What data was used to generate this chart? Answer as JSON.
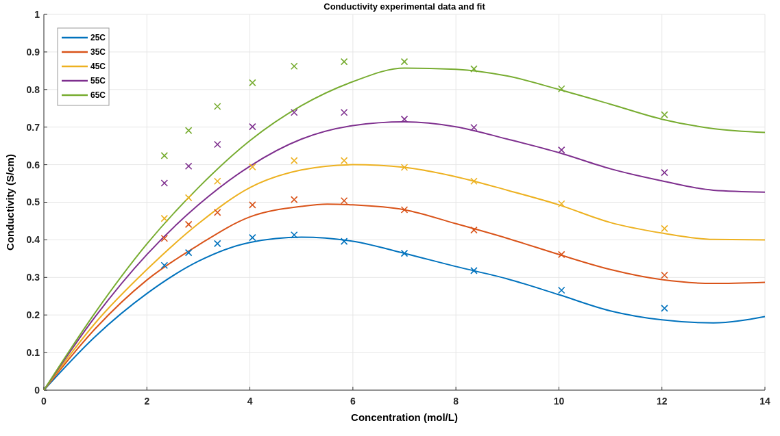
{
  "chart_data": {
    "type": "line",
    "title": "Conductivity experimental data and fit",
    "xlabel": "Concentration (mol/L)",
    "ylabel": "Conductivity (S/cm)",
    "xlim": [
      0,
      14
    ],
    "xticks": [
      0,
      2,
      4,
      6,
      8,
      10,
      12,
      14
    ],
    "ylim": [
      0,
      1
    ],
    "yticks": [
      0,
      0.1,
      0.2,
      0.3,
      0.4,
      0.5,
      0.6,
      0.7,
      0.8,
      0.9,
      1
    ],
    "grid": true,
    "legend": "top left",
    "line_style": "solid",
    "series": [
      {
        "name": "25C",
        "color": "#0072bd",
        "x": [
          0,
          1,
          2,
          3,
          4,
          5,
          6,
          7,
          8,
          9,
          10,
          11,
          12,
          13,
          14
        ],
        "values": [
          0,
          0.143,
          0.257,
          0.343,
          0.393,
          0.407,
          0.396,
          0.364,
          0.329,
          0.296,
          0.254,
          0.211,
          0.187,
          0.179,
          0.196
        ]
      },
      {
        "name": "35C",
        "color": "#d95319",
        "x": [
          0,
          1,
          2,
          3,
          4,
          5,
          5.5,
          6,
          7,
          8,
          9,
          10,
          11,
          12,
          13,
          14
        ],
        "values": [
          0,
          0.164,
          0.293,
          0.386,
          0.461,
          0.489,
          0.495,
          0.493,
          0.48,
          0.443,
          0.404,
          0.361,
          0.321,
          0.294,
          0.284,
          0.287
        ]
      },
      {
        "name": "45C",
        "color": "#edb120",
        "x": [
          0,
          1,
          2,
          3,
          4,
          5,
          6,
          7,
          8,
          9,
          10,
          11,
          12,
          13,
          14
        ],
        "values": [
          0,
          0.179,
          0.321,
          0.443,
          0.539,
          0.586,
          0.6,
          0.593,
          0.568,
          0.532,
          0.493,
          0.446,
          0.418,
          0.401,
          0.4
        ]
      },
      {
        "name": "55C",
        "color": "#7e2f8e",
        "x": [
          0,
          1,
          2,
          3,
          4,
          5,
          6,
          7,
          8,
          9,
          10,
          11,
          12,
          13,
          14
        ],
        "values": [
          0,
          0.196,
          0.361,
          0.493,
          0.596,
          0.668,
          0.704,
          0.714,
          0.701,
          0.668,
          0.632,
          0.589,
          0.557,
          0.532,
          0.527
        ]
      },
      {
        "name": "65C",
        "color": "#77ac30",
        "x": [
          0,
          1,
          2,
          3,
          4,
          5,
          6,
          7,
          8,
          9,
          10,
          11,
          12,
          13,
          14
        ],
        "values": [
          0,
          0.207,
          0.389,
          0.539,
          0.664,
          0.757,
          0.821,
          0.857,
          0.854,
          0.836,
          0.8,
          0.761,
          0.721,
          0.696,
          0.686
        ]
      },
      {
        "type": "scatter",
        "marker": "cross",
        "color": "#0072bd",
        "x": [
          2.34,
          2.81,
          3.37,
          4.05,
          4.86,
          5.83,
          7.0,
          8.35,
          10.05,
          12.05
        ],
        "values": [
          0.332,
          0.366,
          0.39,
          0.406,
          0.413,
          0.396,
          0.364,
          0.318,
          0.266,
          0.218
        ]
      },
      {
        "type": "scatter",
        "marker": "cross",
        "color": "#d95319",
        "x": [
          2.34,
          2.81,
          3.37,
          4.05,
          4.86,
          5.83,
          7.0,
          8.35,
          10.05,
          12.05
        ],
        "values": [
          0.404,
          0.441,
          0.473,
          0.493,
          0.507,
          0.504,
          0.48,
          0.426,
          0.361,
          0.306
        ]
      },
      {
        "type": "scatter",
        "marker": "cross",
        "color": "#edb120",
        "x": [
          2.34,
          2.81,
          3.37,
          4.05,
          4.86,
          5.83,
          7.0,
          8.35,
          10.05,
          12.05
        ],
        "values": [
          0.457,
          0.512,
          0.556,
          0.594,
          0.611,
          0.611,
          0.593,
          0.556,
          0.496,
          0.43
        ]
      },
      {
        "type": "scatter",
        "marker": "cross",
        "color": "#7e2f8e",
        "x": [
          2.34,
          2.81,
          3.37,
          4.05,
          4.86,
          5.83,
          7.0,
          8.35,
          10.05,
          12.05
        ],
        "values": [
          0.551,
          0.596,
          0.654,
          0.701,
          0.739,
          0.739,
          0.721,
          0.699,
          0.639,
          0.579
        ]
      },
      {
        "type": "scatter",
        "marker": "cross",
        "color": "#77ac30",
        "x": [
          2.34,
          2.81,
          3.37,
          4.05,
          4.86,
          5.83,
          7.0,
          8.35,
          10.05,
          12.05
        ],
        "values": [
          0.624,
          0.691,
          0.755,
          0.818,
          0.862,
          0.874,
          0.874,
          0.855,
          0.802,
          0.733
        ]
      }
    ]
  }
}
